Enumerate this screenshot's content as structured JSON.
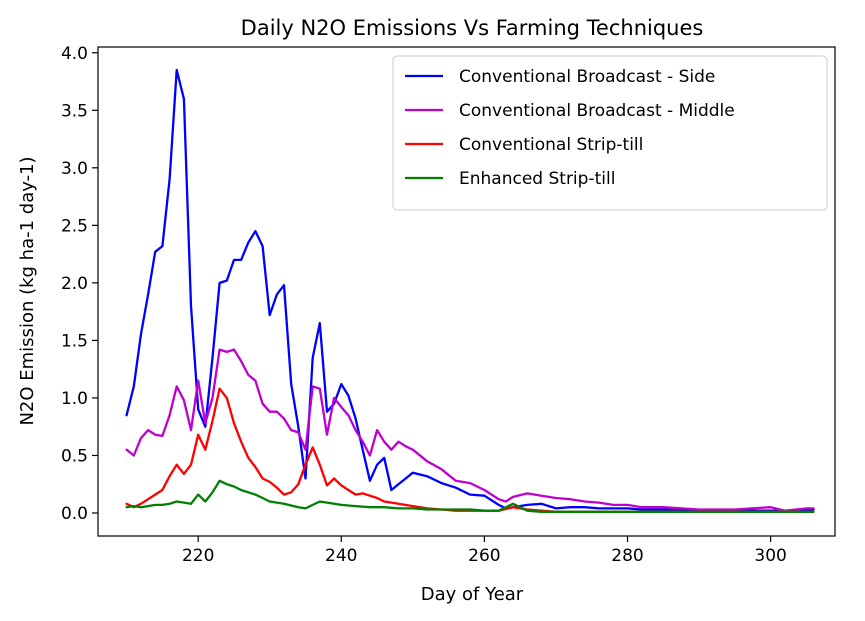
{
  "chart_data": {
    "type": "line",
    "title": "Daily N2O Emissions Vs Farming Techniques",
    "xlabel": "Day of Year",
    "ylabel": "N2O Emission (kg ha-1 day-1)",
    "xlim": [
      206,
      309
    ],
    "ylim": [
      -0.2,
      4.05
    ],
    "xticks": [
      220,
      240,
      260,
      280,
      300
    ],
    "yticks": [
      0.0,
      0.5,
      1.0,
      1.5,
      2.0,
      2.5,
      3.0,
      3.5,
      4.0
    ],
    "xtick_labels": [
      "220",
      "240",
      "260",
      "280",
      "300"
    ],
    "ytick_labels": [
      "0.0",
      "0.5",
      "1.0",
      "1.5",
      "2.0",
      "2.5",
      "3.0",
      "3.5",
      "4.0"
    ],
    "legend_position": "top-right",
    "grid": false,
    "series": [
      {
        "name": "Conventional Broadcast - Side",
        "color": "#0000ff",
        "x": [
          210,
          211,
          212,
          213,
          214,
          215,
          216,
          217,
          218,
          219,
          220,
          221,
          222,
          223,
          224,
          225,
          226,
          227,
          228,
          229,
          230,
          231,
          232,
          233,
          234,
          235,
          236,
          237,
          238,
          239,
          240,
          241,
          242,
          243,
          244,
          245,
          246,
          247,
          248,
          249,
          250,
          252,
          254,
          256,
          258,
          260,
          262,
          263,
          264,
          266,
          268,
          270,
          272,
          274,
          276,
          278,
          280,
          282,
          285,
          290,
          295,
          300,
          305,
          306
        ],
        "y": [
          0.85,
          1.1,
          1.55,
          1.9,
          2.27,
          2.32,
          2.9,
          3.85,
          3.6,
          1.8,
          0.9,
          0.75,
          1.35,
          2.0,
          2.02,
          2.2,
          2.2,
          2.35,
          2.45,
          2.32,
          1.72,
          1.9,
          1.98,
          1.12,
          0.75,
          0.3,
          1.35,
          1.65,
          0.88,
          0.95,
          1.12,
          1.02,
          0.82,
          0.55,
          0.28,
          0.42,
          0.48,
          0.2,
          0.25,
          0.3,
          0.35,
          0.32,
          0.26,
          0.22,
          0.16,
          0.15,
          0.07,
          0.04,
          0.05,
          0.07,
          0.08,
          0.04,
          0.05,
          0.05,
          0.04,
          0.04,
          0.04,
          0.03,
          0.03,
          0.02,
          0.02,
          0.02,
          0.02,
          0.03
        ]
      },
      {
        "name": "Conventional Broadcast - Middle",
        "color": "#c000d0",
        "x": [
          210,
          211,
          212,
          213,
          214,
          215,
          216,
          217,
          218,
          219,
          220,
          221,
          222,
          223,
          224,
          225,
          226,
          227,
          228,
          229,
          230,
          231,
          232,
          233,
          234,
          235,
          236,
          237,
          238,
          239,
          240,
          241,
          242,
          243,
          244,
          245,
          246,
          247,
          248,
          249,
          250,
          252,
          254,
          256,
          258,
          260,
          262,
          263,
          264,
          266,
          268,
          270,
          272,
          274,
          276,
          278,
          280,
          282,
          285,
          290,
          295,
          300,
          302,
          305,
          306
        ],
        "y": [
          0.55,
          0.5,
          0.65,
          0.72,
          0.68,
          0.67,
          0.85,
          1.1,
          0.98,
          0.72,
          1.15,
          0.78,
          1.0,
          1.42,
          1.4,
          1.42,
          1.32,
          1.2,
          1.15,
          0.95,
          0.88,
          0.88,
          0.82,
          0.72,
          0.7,
          0.55,
          1.1,
          1.08,
          0.68,
          1.0,
          0.92,
          0.85,
          0.72,
          0.62,
          0.5,
          0.72,
          0.62,
          0.55,
          0.62,
          0.58,
          0.55,
          0.45,
          0.38,
          0.28,
          0.26,
          0.2,
          0.12,
          0.1,
          0.14,
          0.17,
          0.15,
          0.13,
          0.12,
          0.1,
          0.09,
          0.07,
          0.07,
          0.05,
          0.05,
          0.03,
          0.03,
          0.05,
          0.02,
          0.04,
          0.04
        ]
      },
      {
        "name": "Conventional Strip-till",
        "color": "#ff0000",
        "x": [
          210,
          211,
          212,
          213,
          214,
          215,
          216,
          217,
          218,
          219,
          220,
          221,
          222,
          223,
          224,
          225,
          226,
          227,
          228,
          229,
          230,
          231,
          232,
          233,
          234,
          235,
          236,
          237,
          238,
          239,
          240,
          241,
          242,
          243,
          244,
          245,
          246,
          248,
          250,
          252,
          254,
          256,
          258,
          260,
          262,
          264,
          266,
          268,
          270,
          275,
          280,
          290,
          300,
          306
        ],
        "y": [
          0.08,
          0.05,
          0.08,
          0.12,
          0.16,
          0.2,
          0.32,
          0.42,
          0.34,
          0.42,
          0.68,
          0.55,
          0.8,
          1.08,
          1.0,
          0.78,
          0.62,
          0.48,
          0.4,
          0.3,
          0.27,
          0.22,
          0.16,
          0.18,
          0.25,
          0.42,
          0.57,
          0.42,
          0.24,
          0.3,
          0.24,
          0.2,
          0.16,
          0.17,
          0.15,
          0.13,
          0.1,
          0.08,
          0.06,
          0.04,
          0.03,
          0.02,
          0.02,
          0.02,
          0.02,
          0.05,
          0.03,
          0.02,
          0.01,
          0.01,
          0.01,
          0.01,
          0.01,
          0.01
        ]
      },
      {
        "name": "Enhanced Strip-till",
        "color": "#008000",
        "x": [
          210,
          211,
          212,
          213,
          214,
          215,
          216,
          217,
          218,
          219,
          220,
          221,
          222,
          223,
          224,
          225,
          226,
          227,
          228,
          229,
          230,
          232,
          234,
          235,
          236,
          237,
          238,
          240,
          242,
          244,
          246,
          248,
          250,
          252,
          254,
          256,
          258,
          260,
          262,
          264,
          266,
          268,
          270,
          275,
          280,
          290,
          300,
          306
        ],
        "y": [
          0.05,
          0.06,
          0.05,
          0.06,
          0.07,
          0.07,
          0.08,
          0.1,
          0.09,
          0.08,
          0.16,
          0.1,
          0.18,
          0.28,
          0.25,
          0.23,
          0.2,
          0.18,
          0.16,
          0.13,
          0.1,
          0.08,
          0.05,
          0.04,
          0.07,
          0.1,
          0.09,
          0.07,
          0.06,
          0.05,
          0.05,
          0.04,
          0.04,
          0.03,
          0.03,
          0.03,
          0.03,
          0.02,
          0.02,
          0.08,
          0.02,
          0.01,
          0.01,
          0.01,
          0.01,
          0.01,
          0.01,
          0.01
        ]
      }
    ]
  }
}
